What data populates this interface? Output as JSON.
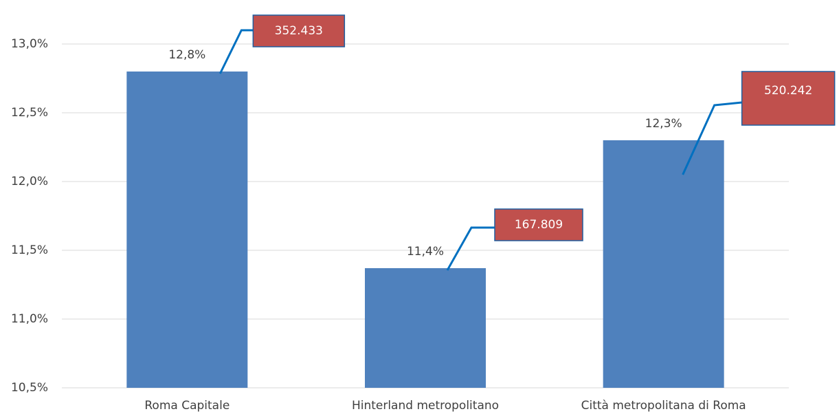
{
  "chart_data": {
    "type": "bar",
    "categories": [
      "Roma Capitale",
      "Hinterland metropolitano",
      "Città metropolitana di Roma"
    ],
    "values": [
      12.8,
      11.37,
      12.3
    ],
    "value_labels": [
      "12,8%",
      "11,4%",
      "12,3%"
    ],
    "annotations": [
      "352.433",
      "167.809",
      "520.242"
    ],
    "color": "#4f81bd",
    "ylim": [
      10.5,
      13.0
    ],
    "yticks": [
      {
        "value": 10.5,
        "label": "10,5%"
      },
      {
        "value": 11.0,
        "label": "11,0%"
      },
      {
        "value": 11.5,
        "label": "11,5%"
      },
      {
        "value": 12.0,
        "label": "12,0%"
      },
      {
        "value": 12.5,
        "label": "12,5%"
      },
      {
        "value": 13.0,
        "label": "13,0%"
      }
    ],
    "grid": true
  }
}
